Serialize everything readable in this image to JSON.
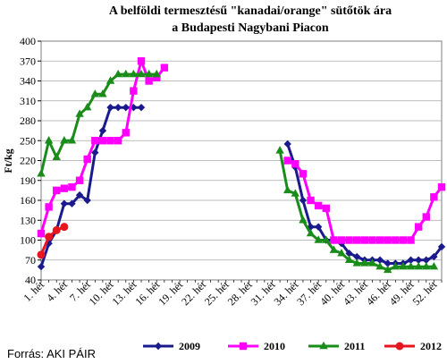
{
  "chart_data": {
    "type": "line",
    "title_lines": [
      "A belföldi termesztésű  \"kanadai/orange\" sütőtök ára",
      "a Budapesti Nagybani Piacon"
    ],
    "ylabel": "Ft/kg",
    "xlabel": "",
    "ylim": [
      40,
      400
    ],
    "ytick_step": 30,
    "x_range": [
      1,
      53
    ],
    "x_tick_labels": [
      "1. hét",
      "4. hét",
      "7. hét",
      "10. hét",
      "13. hét",
      "16. hét",
      "19. hét",
      "22. hét",
      "25. hét",
      "28. hét",
      "31. hét",
      "34. hét",
      "37. hét",
      "40. hét",
      "43. hét",
      "46. hét",
      "49. hét",
      "52. hét"
    ],
    "x_tick_weeks": [
      1,
      4,
      7,
      10,
      13,
      16,
      19,
      22,
      25,
      28,
      31,
      34,
      37,
      40,
      43,
      46,
      49,
      52
    ],
    "source": "Forrás: AKI PÁIR",
    "legend_position": "bottom",
    "series": [
      {
        "name": "2009",
        "color": "#1a1a8c",
        "marker": "diamond",
        "points": [
          [
            1,
            60
          ],
          [
            2,
            95
          ],
          [
            3,
            115
          ],
          [
            4,
            155
          ],
          [
            5,
            155
          ],
          [
            6,
            168
          ],
          [
            7,
            160
          ],
          [
            8,
            232
          ],
          [
            9,
            265
          ],
          [
            10,
            300
          ],
          [
            11,
            300
          ],
          [
            12,
            300
          ],
          [
            13,
            300
          ],
          [
            14,
            300
          ],
          [
            33,
            245
          ],
          [
            34,
            210
          ],
          [
            35,
            160
          ],
          [
            36,
            120
          ],
          [
            37,
            120
          ],
          [
            38,
            100
          ],
          [
            39,
            100
          ],
          [
            40,
            95
          ],
          [
            41,
            80
          ],
          [
            42,
            75
          ],
          [
            43,
            70
          ],
          [
            44,
            70
          ],
          [
            45,
            70
          ],
          [
            46,
            65
          ],
          [
            47,
            65
          ],
          [
            48,
            65
          ],
          [
            49,
            70
          ],
          [
            50,
            70
          ],
          [
            51,
            70
          ],
          [
            52,
            75
          ],
          [
            53,
            90
          ]
        ]
      },
      {
        "name": "2010",
        "color": "#ff00ff",
        "marker": "square",
        "points": [
          [
            1,
            110
          ],
          [
            2,
            150
          ],
          [
            3,
            175
          ],
          [
            4,
            178
          ],
          [
            5,
            180
          ],
          [
            6,
            190
          ],
          [
            7,
            222
          ],
          [
            8,
            250
          ],
          [
            9,
            250
          ],
          [
            10,
            250
          ],
          [
            11,
            250
          ],
          [
            12,
            262
          ],
          [
            13,
            325
          ],
          [
            14,
            370
          ],
          [
            15,
            340
          ],
          [
            16,
            345
          ],
          [
            17,
            360
          ],
          [
            33,
            220
          ],
          [
            34,
            215
          ],
          [
            35,
            200
          ],
          [
            36,
            160
          ],
          [
            37,
            152
          ],
          [
            38,
            148
          ],
          [
            39,
            100
          ],
          [
            40,
            100
          ],
          [
            41,
            100
          ],
          [
            42,
            100
          ],
          [
            43,
            100
          ],
          [
            44,
            100
          ],
          [
            45,
            100
          ],
          [
            46,
            100
          ],
          [
            47,
            100
          ],
          [
            48,
            100
          ],
          [
            49,
            100
          ],
          [
            50,
            120
          ],
          [
            51,
            135
          ],
          [
            52,
            165
          ],
          [
            53,
            180
          ]
        ]
      },
      {
        "name": "2011",
        "color": "#1a8c1a",
        "marker": "triangle",
        "points": [
          [
            1,
            200
          ],
          [
            2,
            250
          ],
          [
            3,
            225
          ],
          [
            4,
            250
          ],
          [
            5,
            250
          ],
          [
            6,
            290
          ],
          [
            7,
            300
          ],
          [
            8,
            320
          ],
          [
            9,
            320
          ],
          [
            10,
            340
          ],
          [
            11,
            350
          ],
          [
            12,
            350
          ],
          [
            13,
            350
          ],
          [
            14,
            350
          ],
          [
            15,
            350
          ],
          [
            16,
            350
          ],
          [
            32,
            235
          ],
          [
            33,
            175
          ],
          [
            34,
            170
          ],
          [
            35,
            130
          ],
          [
            36,
            110
          ],
          [
            37,
            100
          ],
          [
            38,
            100
          ],
          [
            39,
            85
          ],
          [
            40,
            80
          ],
          [
            41,
            70
          ],
          [
            42,
            65
          ],
          [
            43,
            65
          ],
          [
            44,
            65
          ],
          [
            45,
            60
          ],
          [
            46,
            55
          ],
          [
            47,
            60
          ],
          [
            48,
            60
          ],
          [
            49,
            60
          ],
          [
            50,
            60
          ],
          [
            51,
            60
          ],
          [
            52,
            60
          ]
        ]
      },
      {
        "name": "2012",
        "color": "#e8141e",
        "marker": "circle",
        "points": [
          [
            1,
            78
          ],
          [
            2,
            105
          ],
          [
            3,
            115
          ],
          [
            4,
            120
          ]
        ]
      }
    ]
  }
}
